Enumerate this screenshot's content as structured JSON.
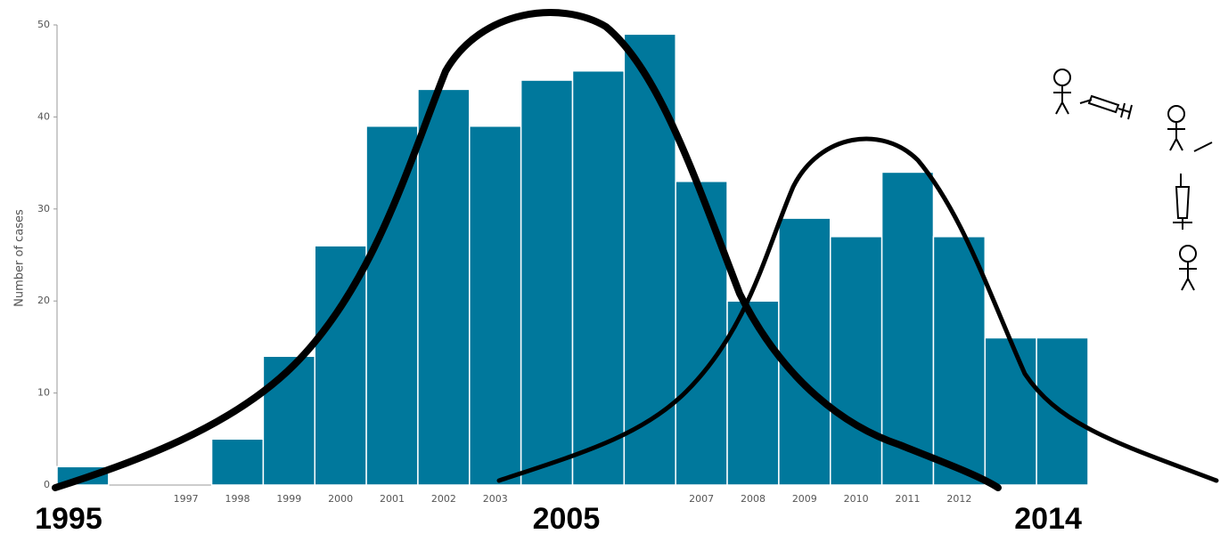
{
  "chart_data": {
    "type": "bar",
    "y_label": "Number of cases",
    "categories": [
      null,
      null,
      "1997",
      "1998",
      "1999",
      "2000",
      "2001",
      "2002",
      "2003",
      null,
      null,
      null,
      "2007",
      "2008",
      "2009",
      "2010",
      "2011",
      "2012",
      null,
      null
    ],
    "values": [
      2,
      0,
      0,
      5,
      14,
      26,
      39,
      43,
      39,
      44,
      45,
      49,
      33,
      20,
      29,
      27,
      34,
      27,
      16,
      16
    ],
    "color": "#00789c",
    "ylim": [
      0,
      50
    ],
    "yticks": [
      0,
      10,
      20,
      30,
      40,
      50
    ],
    "annotations": [
      "1995",
      "2005",
      "2014"
    ]
  }
}
